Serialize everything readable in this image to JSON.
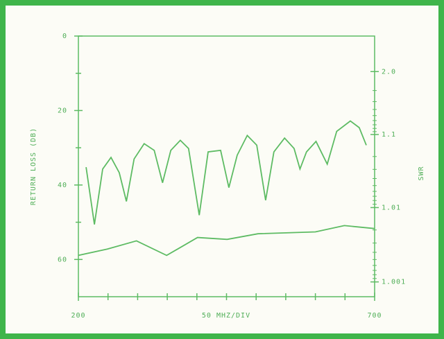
{
  "chart_data": {
    "type": "line",
    "ylabel": "RETURN LOSS (DB)",
    "y2label": "SWR",
    "xlabel": "50 MHZ/DIV",
    "xlim": [
      200,
      700
    ],
    "xticks": [
      200,
      700
    ],
    "ylim": [
      0,
      70
    ],
    "yticks": [
      0,
      20,
      40,
      60
    ],
    "yinverted": true,
    "y2scale": "swr",
    "y2ticks": [
      {
        "value": 2,
        "label": "2.0"
      },
      1.1,
      1.01,
      1.001
    ],
    "series": [
      {
        "color": "#5dbb63",
        "x": [
          213,
          227,
          241,
          255,
          269,
          281,
          294,
          311,
          328,
          342,
          356,
          372,
          386,
          404,
          419,
          440,
          454,
          468,
          485,
          501,
          516,
          530,
          548,
          564,
          574,
          585,
          601,
          620,
          636,
          659,
          674,
          686
        ],
        "values": [
          35.2,
          50.6,
          35.7,
          32.6,
          36.7,
          44.4,
          33.0,
          28.9,
          30.7,
          39.4,
          30.7,
          28.0,
          30.2,
          48.1,
          31.1,
          30.7,
          40.7,
          32.0,
          26.7,
          29.3,
          44.1,
          31.1,
          27.4,
          30.2,
          35.7,
          31.1,
          28.3,
          34.4,
          25.6,
          22.8,
          24.6,
          29.3
        ]
      },
      {
        "color": "#5dbb63",
        "x": [
          200,
          249,
          298,
          349,
          401,
          451,
          503,
          600,
          649,
          700
        ],
        "values": [
          58.9,
          57.2,
          55.0,
          58.9,
          54.1,
          54.6,
          53.1,
          52.6,
          50.9,
          51.7
        ]
      }
    ]
  }
}
